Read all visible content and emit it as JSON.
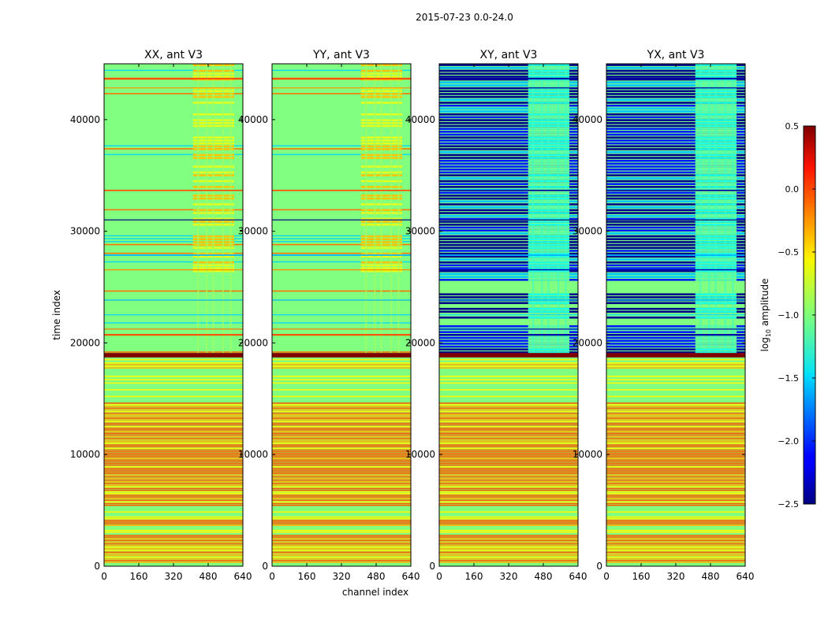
{
  "figure_title": "2015-07-23 0.0-24.0",
  "chart_data": {
    "type": "heatmap",
    "title": "2015-07-23 0.0-24.0",
    "xlabel": "channel index",
    "ylabel": "time index",
    "xlim": [
      0,
      640
    ],
    "ylim": [
      0,
      45000
    ],
    "x_ticks": [
      0,
      160,
      320,
      480,
      640
    ],
    "y_ticks": [
      0,
      10000,
      20000,
      30000,
      40000
    ],
    "panels": [
      {
        "title": "XX, ant V3",
        "kind": "auto"
      },
      {
        "title": "YY, ant V3",
        "kind": "auto"
      },
      {
        "title": "XY, ant V3",
        "kind": "cross"
      },
      {
        "title": "YX, ant V3",
        "kind": "cross"
      }
    ],
    "colorbar": {
      "label": "log10 amplitude",
      "label_base": "log",
      "label_sub": "10",
      "label_rest": " amplitude",
      "vmin": -2.5,
      "vmax": 0.5,
      "ticks": [
        -2.5,
        -2.0,
        -1.5,
        -1.0,
        -0.5,
        0.0,
        0.5
      ],
      "tick_labels": [
        "−2.5",
        "−2.0",
        "−1.5",
        "−1.0",
        "−0.5",
        "0.0",
        "0.5"
      ],
      "colormap": "jet"
    },
    "bright_channel_range": [
      410,
      600
    ],
    "bands": [
      {
        "t": 18700,
        "h": 400,
        "v": 0.5
      },
      {
        "t": 20650,
        "h": 150,
        "v": -0.1
      },
      {
        "t": 21200,
        "h": 80,
        "v": -0.2
      },
      {
        "t": 30950,
        "h": 100,
        "v": -1.0
      },
      {
        "t": 31000,
        "h": 60,
        "v": -2.5
      },
      {
        "t": 33600,
        "h": 120,
        "v": -0.1
      },
      {
        "t": 43600,
        "h": 150,
        "v": -0.1
      },
      {
        "t": 42800,
        "h": 80,
        "v": -0.3
      },
      {
        "t": 27800,
        "h": 120,
        "v": -1.6
      },
      {
        "t": 26500,
        "h": 100,
        "v": -0.3
      },
      {
        "t": 23800,
        "h": 80,
        "v": -1.6
      },
      {
        "t": 22500,
        "h": 60,
        "v": -1.5
      }
    ]
  }
}
